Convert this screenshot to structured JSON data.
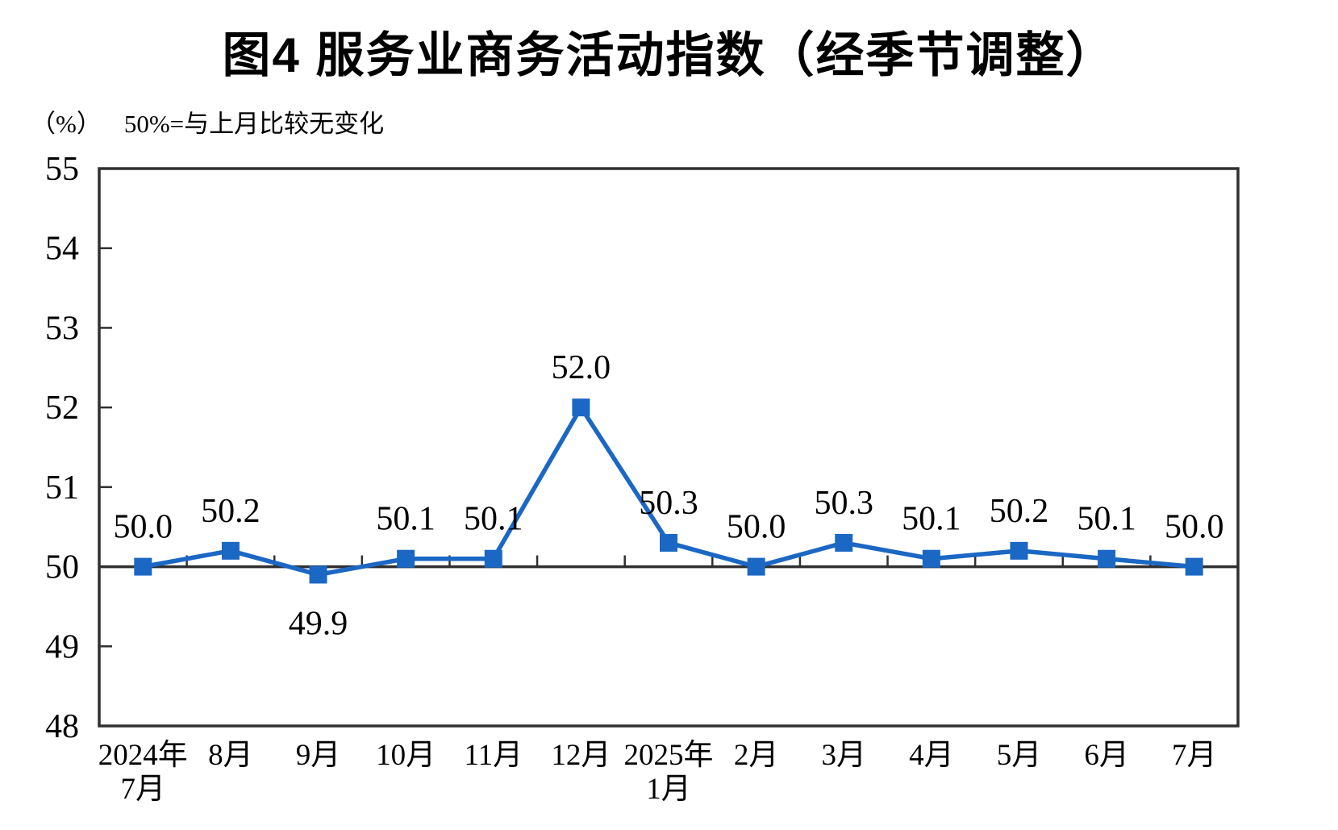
{
  "page": {
    "title": "图4 服务业商务活动指数（经季节调整）",
    "unit_label": "（%）",
    "note": "50%=与上月比较无变化"
  },
  "colors": {
    "line": "#1B67C4",
    "axis": "#303030",
    "text": "#000000"
  },
  "chart_data": {
    "type": "line",
    "title": "图4 服务业商务活动指数（经季节调整）",
    "ylabel": "%",
    "note": "50%=与上月比较无变化",
    "categories": [
      "2024年7月",
      "8月",
      "9月",
      "10月",
      "11月",
      "12月",
      "2025年1月",
      "2月",
      "3月",
      "4月",
      "5月",
      "6月",
      "7月"
    ],
    "category_label_lines": [
      [
        "2024年",
        "7月"
      ],
      [
        "8月"
      ],
      [
        "9月"
      ],
      [
        "10月"
      ],
      [
        "11月"
      ],
      [
        "12月"
      ],
      [
        "2025年",
        "1月"
      ],
      [
        "2月"
      ],
      [
        "3月"
      ],
      [
        "4月"
      ],
      [
        "5月"
      ],
      [
        "6月"
      ],
      [
        "7月"
      ]
    ],
    "series": [
      {
        "name": "服务业商务活动指数",
        "values": [
          50.0,
          50.2,
          49.9,
          50.1,
          50.1,
          52.0,
          50.3,
          50.0,
          50.3,
          50.1,
          50.2,
          50.1,
          50.0
        ]
      }
    ],
    "point_label_position": [
      "above",
      "above",
      "below",
      "above",
      "above",
      "above",
      "above",
      "above",
      "above",
      "above",
      "above",
      "above",
      "above"
    ],
    "ylim": [
      48,
      55
    ],
    "yticks": [
      48,
      49,
      50,
      51,
      52,
      53,
      54,
      55
    ],
    "baseline": 50,
    "grid": false,
    "legend": false,
    "marker": "square"
  }
}
